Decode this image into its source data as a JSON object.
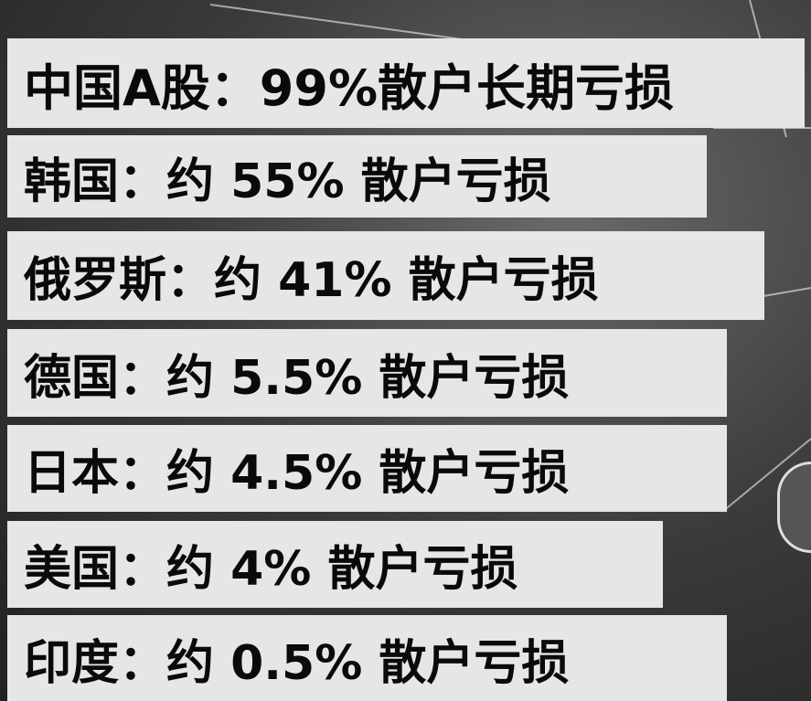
{
  "rows": [
    {
      "text": "中国A股：99%散户长期亏损"
    },
    {
      "text": "韩国：约 55% 散户亏损"
    },
    {
      "text": "俄罗斯：约 41% 散户亏损"
    },
    {
      "text": "德国：约 5.5% 散户亏损"
    },
    {
      "text": "日本：约 4.5% 散户亏损"
    },
    {
      "text": "美国：约 4% 散户亏损"
    },
    {
      "text": "印度：约 0.5% 散户亏损"
    }
  ]
}
